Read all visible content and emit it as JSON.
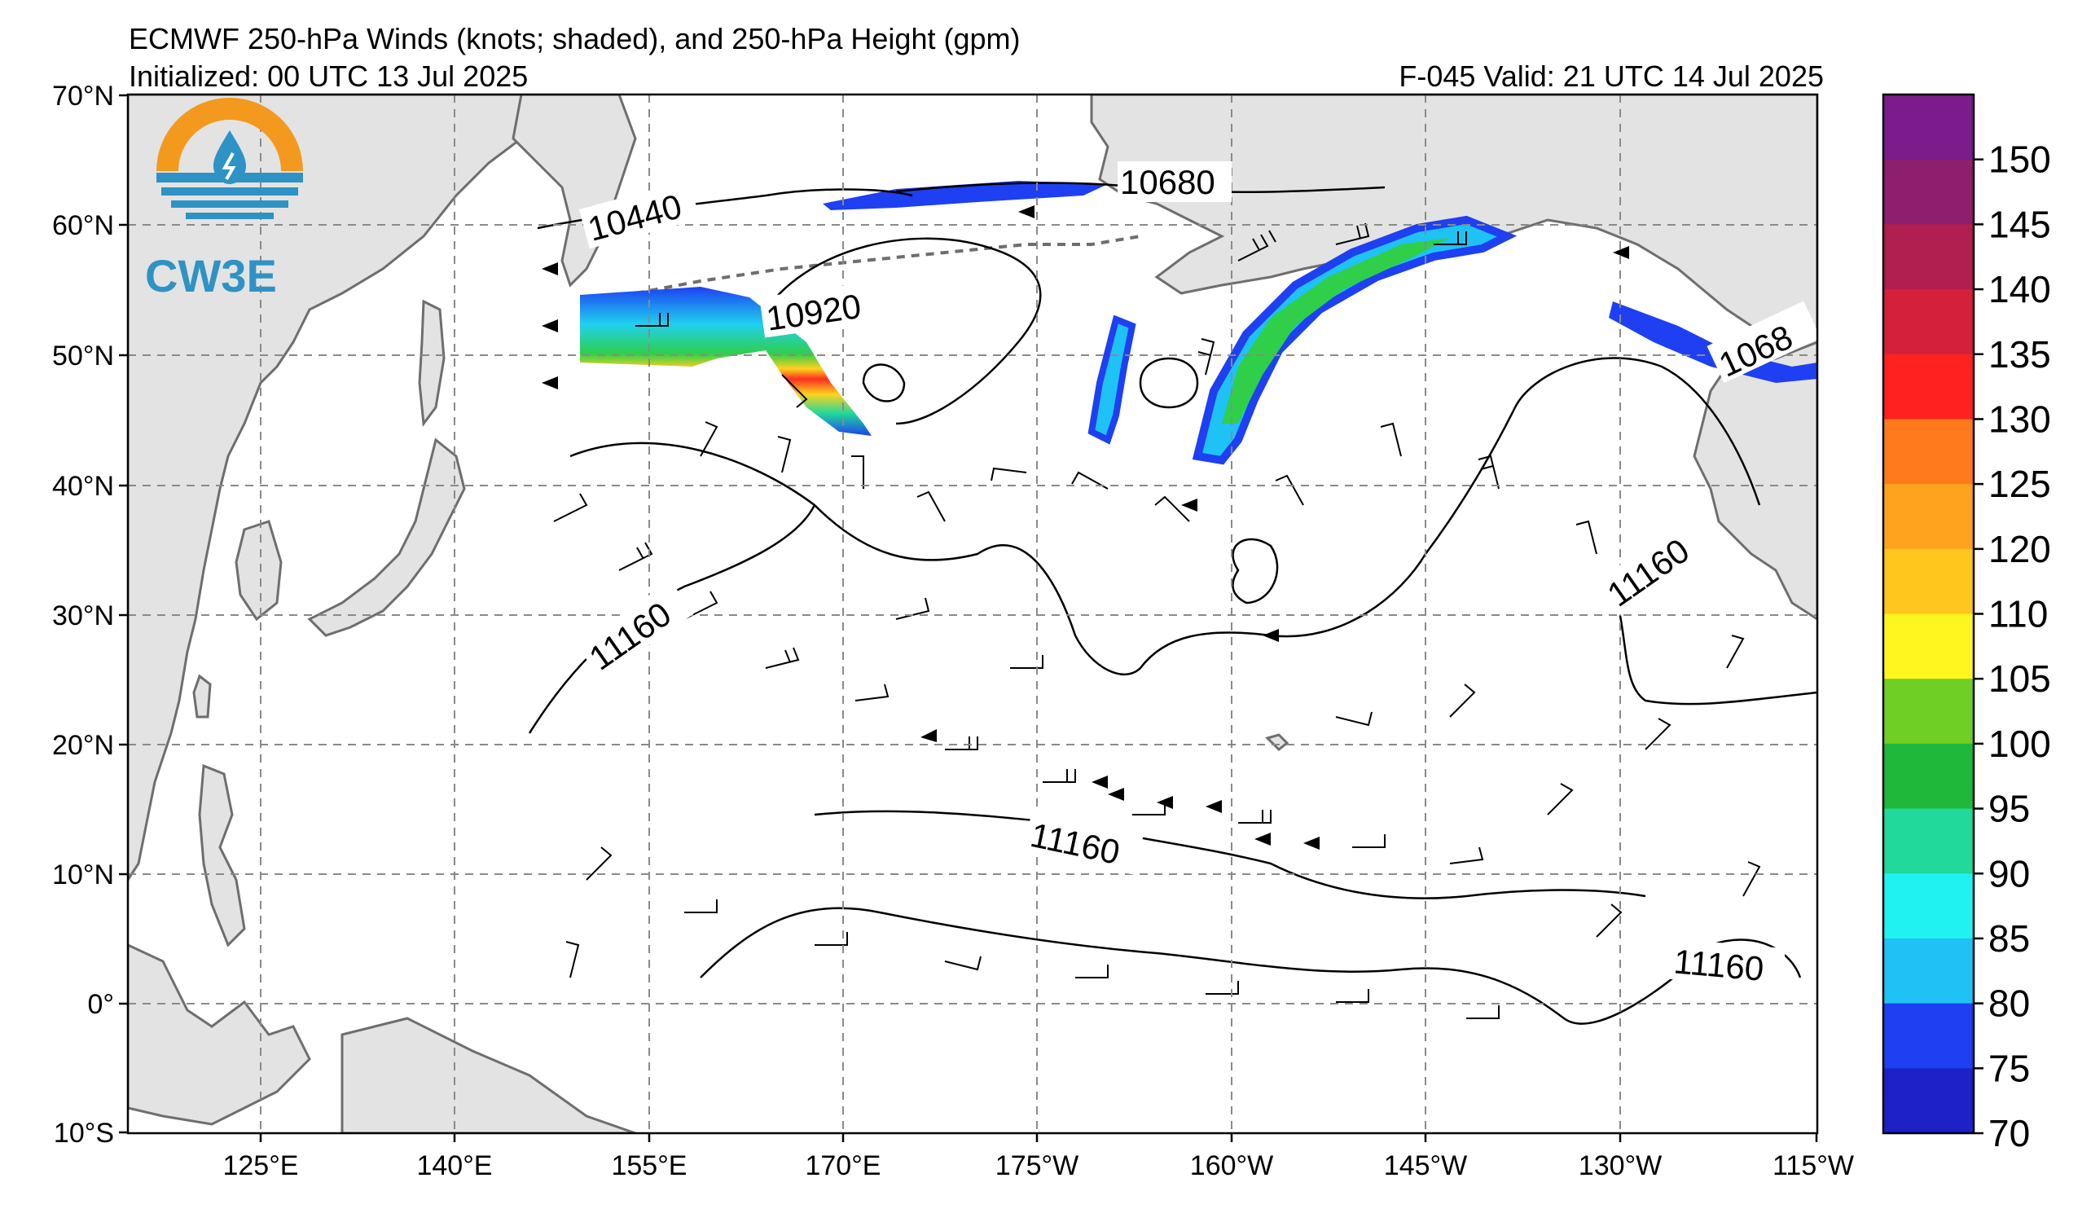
{
  "header": {
    "title": "ECMWF 250-hPa Winds (knots; shaded), and 250-hPa Height (gpm)",
    "initialized": "Initialized: 00 UTC 13 Jul 2025",
    "valid": "F-045  Valid: 21 UTC 14 Jul 2025"
  },
  "logo": {
    "text": "CW3E",
    "icon": "cw3e-water-drop-icon"
  },
  "map": {
    "lat_labels": [
      "70°N",
      "60°N",
      "50°N",
      "40°N",
      "30°N",
      "20°N",
      "10°N",
      "0°",
      "10°S"
    ],
    "lon_labels": [
      "125°E",
      "140°E",
      "155°E",
      "170°E",
      "175°W",
      "160°W",
      "145°W",
      "130°W",
      "115°W"
    ],
    "contour_labels": [
      "10440",
      "10680",
      "10920",
      "1068",
      "11160",
      "11160",
      "11160",
      "11160"
    ],
    "colors": {
      "land": "#e3e3e3",
      "ocean": "#ffffff",
      "coast": "#6e6e6e",
      "grid": "#8a8a8a"
    }
  },
  "colorbar": {
    "labels": [
      "150",
      "145",
      "140",
      "135",
      "130",
      "125",
      "120",
      "110",
      "105",
      "100",
      "95",
      "90",
      "85",
      "80",
      "75",
      "70"
    ],
    "colors": [
      "#7b1b8c",
      "#8e1f6e",
      "#b11e50",
      "#d4203a",
      "#ff2020",
      "#ff7a1c",
      "#ffa21e",
      "#ffc61e",
      "#fff51f",
      "#6fcf25",
      "#1fb83a",
      "#20d99a",
      "#1ff2f0",
      "#1fc2f5",
      "#1e40f2",
      "#1e20c8"
    ]
  }
}
